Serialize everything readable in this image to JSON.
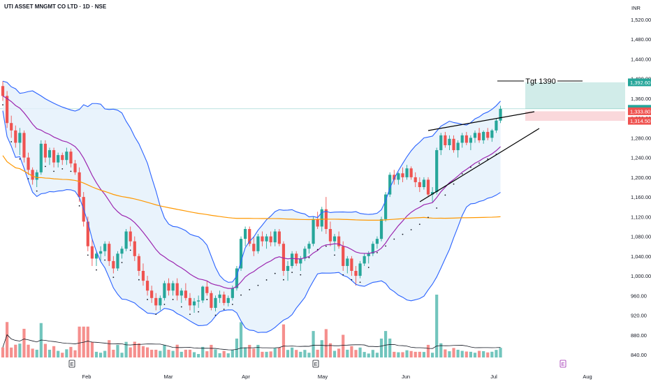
{
  "header": {
    "title": "UTI ASSET MNGMT CO LTD · 1D · NSE",
    "currency": "INR"
  },
  "annotations": {
    "target_label": "Tgt 1390",
    "event_marker": "E"
  },
  "price_tags": [
    {
      "value": "1,392.60",
      "color": "#26a69a"
    },
    {
      "value": "1,338.90",
      "color": "#26a69a"
    },
    {
      "value": "1,333.80",
      "color": "#ef5350"
    },
    {
      "value": "1,314.50",
      "color": "#ef5350"
    }
  ],
  "colors": {
    "up": "#26a69a",
    "down": "#ef5350",
    "bollinger": "#2962ff",
    "band_fill": "#e3f0fb",
    "ema_short": "#9c27b0",
    "ema_long": "#ff9800",
    "volume_ma": "#131722",
    "target_zone": "#b2dfdb",
    "stop_zone": "#f8c8cc"
  },
  "chart_data": {
    "type": "candlestick",
    "title": "UTI ASSET MNGMT CO LTD · 1D · NSE",
    "ylabel": "INR",
    "ylim": [
      820,
      1540
    ],
    "y_ticks": [
      840,
      880,
      920,
      960,
      1000,
      1040,
      1080,
      1120,
      1160,
      1200,
      1240,
      1280,
      1320,
      1360,
      1400,
      1440,
      1480,
      1520
    ],
    "x_ticks": [
      "Feb",
      "Mar",
      "Apr",
      "May",
      "Jun",
      "Jul",
      "Aug"
    ],
    "grid": false,
    "target": 1390,
    "target_zone": [
      1338.9,
      1392.6
    ],
    "stop_zone": [
      1314.5,
      1333.8
    ],
    "last_close": 1338.9,
    "candles": [
      [
        1385,
        1395,
        1355,
        1365
      ],
      [
        1365,
        1375,
        1300,
        1310
      ],
      [
        1310,
        1325,
        1280,
        1295
      ],
      [
        1295,
        1305,
        1260,
        1270
      ],
      [
        1270,
        1300,
        1245,
        1290
      ],
      [
        1290,
        1295,
        1230,
        1240
      ],
      [
        1240,
        1250,
        1205,
        1215
      ],
      [
        1215,
        1220,
        1185,
        1195
      ],
      [
        1195,
        1215,
        1180,
        1210
      ],
      [
        1210,
        1275,
        1205,
        1268
      ],
      [
        1268,
        1275,
        1230,
        1240
      ],
      [
        1240,
        1260,
        1225,
        1255
      ],
      [
        1255,
        1260,
        1220,
        1230
      ],
      [
        1230,
        1250,
        1220,
        1245
      ],
      [
        1245,
        1250,
        1225,
        1235
      ],
      [
        1235,
        1260,
        1225,
        1252
      ],
      [
        1252,
        1258,
        1220,
        1228
      ],
      [
        1228,
        1235,
        1205,
        1210
      ],
      [
        1210,
        1220,
        1150,
        1160
      ],
      [
        1160,
        1170,
        1100,
        1110
      ],
      [
        1110,
        1120,
        1050,
        1060
      ],
      [
        1060,
        1075,
        1020,
        1035
      ],
      [
        1035,
        1050,
        1020,
        1045
      ],
      [
        1045,
        1060,
        1030,
        1050
      ],
      [
        1050,
        1070,
        1040,
        1065
      ],
      [
        1065,
        1070,
        1020,
        1030
      ],
      [
        1030,
        1040,
        1005,
        1015
      ],
      [
        1015,
        1050,
        1010,
        1045
      ],
      [
        1045,
        1060,
        1035,
        1055
      ],
      [
        1055,
        1095,
        1050,
        1090
      ],
      [
        1090,
        1100,
        1060,
        1070
      ],
      [
        1070,
        1080,
        1030,
        1040
      ],
      [
        1040,
        1045,
        1000,
        1010
      ],
      [
        1010,
        1025,
        980,
        990
      ],
      [
        990,
        1000,
        960,
        970
      ],
      [
        970,
        980,
        945,
        955
      ],
      [
        955,
        965,
        930,
        940
      ],
      [
        940,
        960,
        930,
        955
      ],
      [
        955,
        990,
        950,
        985
      ],
      [
        985,
        995,
        960,
        970
      ],
      [
        970,
        990,
        960,
        985
      ],
      [
        985,
        995,
        950,
        960
      ],
      [
        960,
        975,
        945,
        970
      ],
      [
        970,
        985,
        950,
        955
      ],
      [
        955,
        965,
        930,
        940
      ],
      [
        940,
        955,
        925,
        948
      ],
      [
        948,
        960,
        935,
        950
      ],
      [
        950,
        980,
        945,
        978
      ],
      [
        978,
        990,
        960,
        965
      ],
      [
        965,
        970,
        930,
        935
      ],
      [
        935,
        960,
        928,
        955
      ],
      [
        955,
        970,
        945,
        962
      ],
      [
        962,
        968,
        940,
        945
      ],
      [
        945,
        960,
        938,
        955
      ],
      [
        955,
        980,
        950,
        975
      ],
      [
        975,
        1020,
        970,
        1015
      ],
      [
        1015,
        1080,
        1010,
        1075
      ],
      [
        1075,
        1100,
        1060,
        1095
      ],
      [
        1095,
        1100,
        1060,
        1065
      ],
      [
        1065,
        1080,
        1040,
        1050
      ],
      [
        1050,
        1085,
        1045,
        1080
      ],
      [
        1080,
        1090,
        1060,
        1070
      ],
      [
        1070,
        1085,
        1055,
        1080
      ],
      [
        1080,
        1090,
        1060,
        1068
      ],
      [
        1068,
        1095,
        1060,
        1090
      ],
      [
        1090,
        1095,
        1060,
        1065
      ],
      [
        1065,
        1070,
        1000,
        1010
      ],
      [
        1010,
        1030,
        990,
        1020
      ],
      [
        1020,
        1050,
        1015,
        1045
      ],
      [
        1045,
        1050,
        1020,
        1025
      ],
      [
        1025,
        1040,
        1010,
        1035
      ],
      [
        1035,
        1060,
        1030,
        1055
      ],
      [
        1055,
        1070,
        1045,
        1065
      ],
      [
        1065,
        1120,
        1060,
        1115
      ],
      [
        1115,
        1130,
        1095,
        1100
      ],
      [
        1100,
        1140,
        1090,
        1135
      ],
      [
        1135,
        1160,
        1085,
        1095
      ],
      [
        1095,
        1110,
        1060,
        1070
      ],
      [
        1070,
        1085,
        1050,
        1080
      ],
      [
        1080,
        1090,
        1055,
        1060
      ],
      [
        1060,
        1070,
        1010,
        1020
      ],
      [
        1020,
        1040,
        1005,
        1035
      ],
      [
        1035,
        1040,
        1000,
        1010
      ],
      [
        1010,
        1020,
        980,
        1000
      ],
      [
        1000,
        1030,
        995,
        1025
      ],
      [
        1025,
        1045,
        1020,
        1040
      ],
      [
        1040,
        1050,
        1025,
        1045
      ],
      [
        1045,
        1070,
        1040,
        1065
      ],
      [
        1065,
        1080,
        1055,
        1075
      ],
      [
        1075,
        1120,
        1070,
        1115
      ],
      [
        1115,
        1170,
        1110,
        1165
      ],
      [
        1165,
        1210,
        1160,
        1205
      ],
      [
        1205,
        1215,
        1185,
        1195
      ],
      [
        1195,
        1210,
        1185,
        1208
      ],
      [
        1208,
        1220,
        1190,
        1200
      ],
      [
        1200,
        1225,
        1195,
        1218
      ],
      [
        1218,
        1222,
        1195,
        1200
      ],
      [
        1200,
        1210,
        1180,
        1190
      ],
      [
        1190,
        1200,
        1170,
        1180
      ],
      [
        1180,
        1200,
        1175,
        1195
      ],
      [
        1195,
        1200,
        1160,
        1165
      ],
      [
        1165,
        1180,
        1150,
        1170
      ],
      [
        1170,
        1260,
        1165,
        1255
      ],
      [
        1255,
        1290,
        1245,
        1285
      ],
      [
        1285,
        1292,
        1260,
        1265
      ],
      [
        1265,
        1285,
        1255,
        1278
      ],
      [
        1278,
        1285,
        1250,
        1255
      ],
      [
        1255,
        1275,
        1240,
        1270
      ],
      [
        1270,
        1290,
        1260,
        1285
      ],
      [
        1285,
        1292,
        1265,
        1270
      ],
      [
        1270,
        1285,
        1255,
        1280
      ],
      [
        1280,
        1295,
        1270,
        1290
      ],
      [
        1290,
        1300,
        1270,
        1275
      ],
      [
        1275,
        1295,
        1268,
        1292
      ],
      [
        1292,
        1300,
        1275,
        1280
      ],
      [
        1280,
        1298,
        1272,
        1295
      ],
      [
        1295,
        1320,
        1290,
        1315
      ],
      [
        1315,
        1345,
        1310,
        1338.9
      ]
    ]
  }
}
